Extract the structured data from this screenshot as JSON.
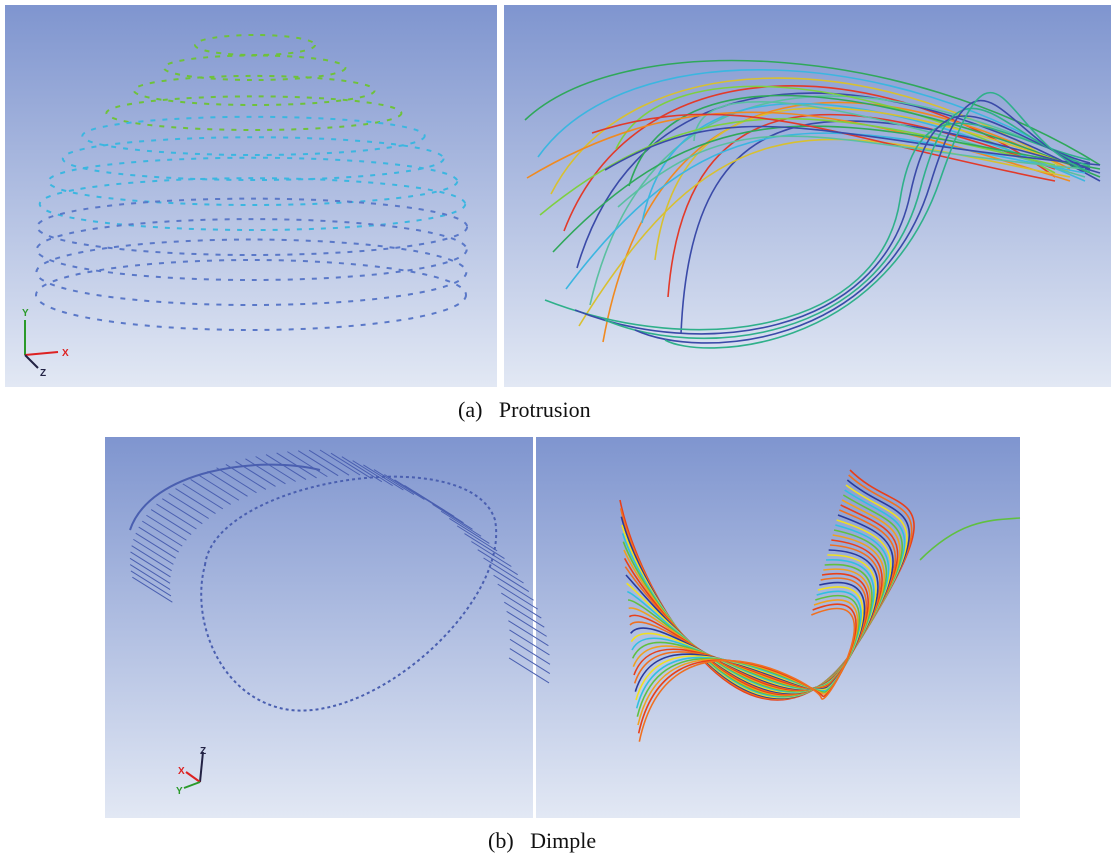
{
  "figure": {
    "panels": [
      {
        "caption": "(a)",
        "label": "Protrusion",
        "axes": [
          "Y",
          "X",
          "Z"
        ]
      },
      {
        "caption": "(b)",
        "label": "Dimple",
        "axes": [
          "Z",
          "X",
          "Y"
        ]
      }
    ]
  }
}
